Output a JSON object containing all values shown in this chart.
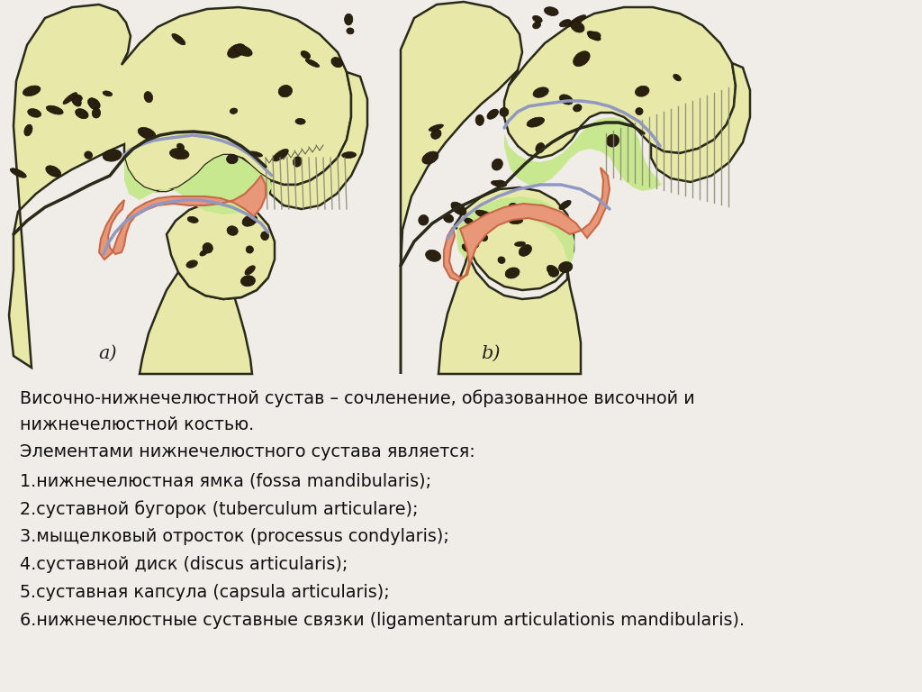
{
  "bg_color": "#f0ede8",
  "bone_color": "#e8e8a8",
  "bone_edge": "#2a2a1a",
  "cart_color": "#c8e890",
  "disc_color": "#e89878",
  "disc_edge": "#c86848",
  "cap_color": "#9098c0",
  "striation_color": "#888870",
  "hole_color": "#2a2010",
  "text_color": "#111111",
  "text_fontsize": 13.8,
  "label_fontsize": 15,
  "text_lines": [
    "Височно-нижнечелюстной сустав – сочленение, образованное височной и",
    "нижнечелюстной костью.",
    "Элементами нижнечелюстного сустава является:",
    "1.нижнечелюстная ямка (fossa mandibularis);",
    "2.суставной бугорок (tuberculum articulare);",
    "3.мыщелковый отросток (processus condylaris);",
    "4.суставной диск (discus articularis);",
    "5.суставная капсула (capsula articularis);",
    "6.нижнечелюстные суставные связки (ligamentarum articulationis mandibularis)."
  ],
  "text_line_spacing": [
    0,
    1,
    1.6,
    2.6,
    3.6,
    4.6,
    5.6,
    6.6,
    7.6
  ]
}
